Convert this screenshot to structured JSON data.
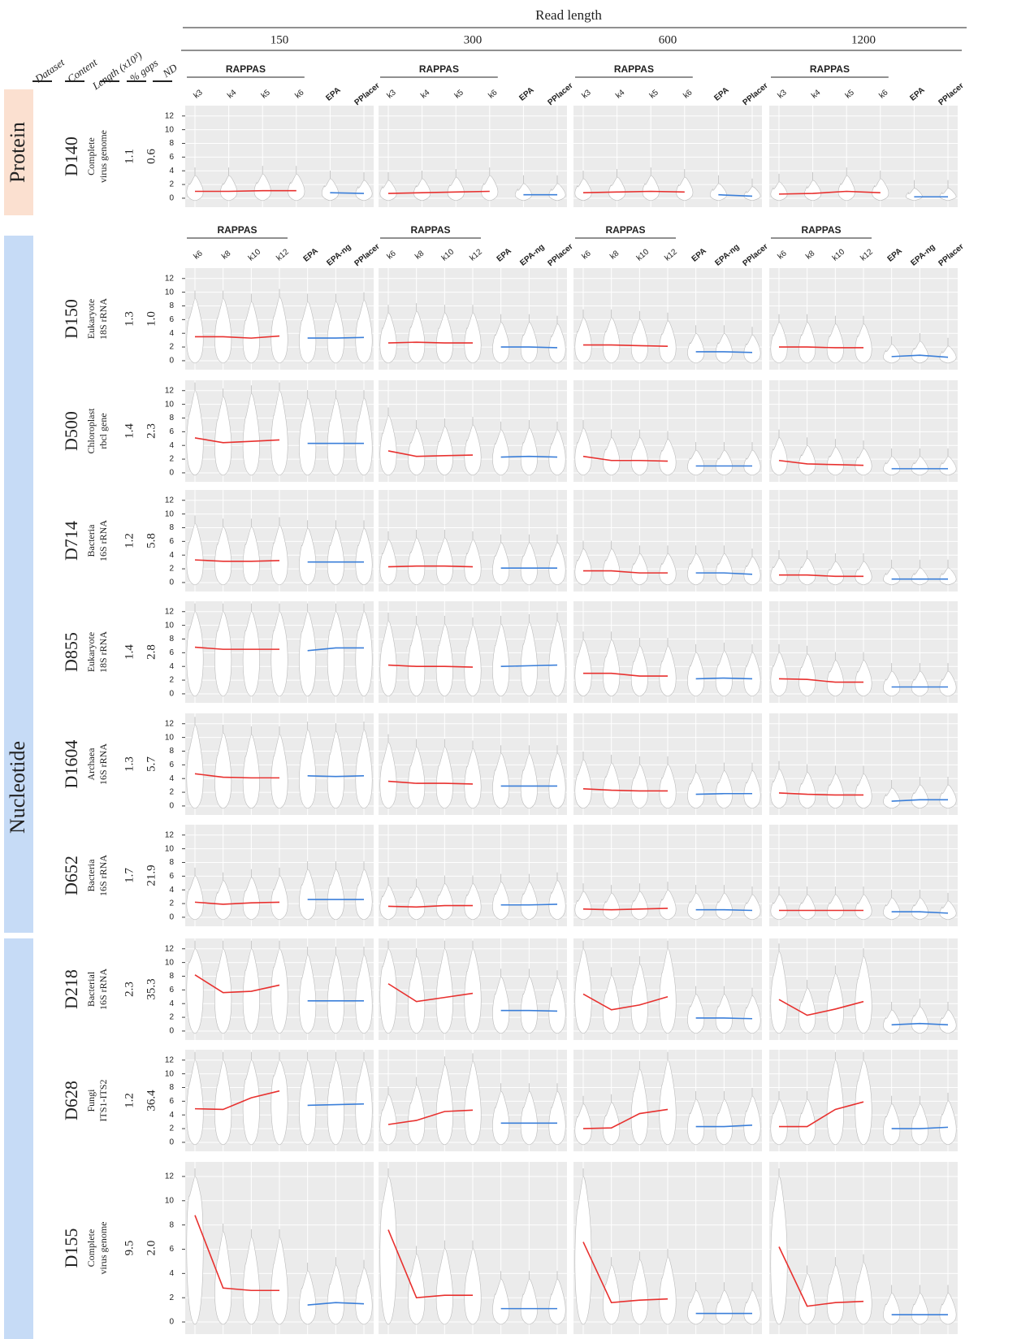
{
  "chart_data": {
    "type": "violin",
    "title": "Read length",
    "read_lengths": [
      "150",
      "300",
      "600",
      "1200"
    ],
    "row_headers": [
      "Dataset",
      "Content",
      "Length (x10³)",
      "% gaps",
      "ND"
    ],
    "ylim": [
      -0.6,
      12.8
    ],
    "yticks": [
      0,
      2,
      4,
      6,
      8,
      10,
      12
    ],
    "grid": true,
    "rappas_color": "#e8312f",
    "other_color": "#3b7fd9",
    "groups": [
      {
        "name": "Protein",
        "group_label": "RAPPAS",
        "rappas_methods": [
          "k3",
          "k4",
          "k5",
          "k6"
        ],
        "other_methods": [
          "EPA",
          "PPlacer"
        ],
        "rows": [
          {
            "dataset": "D140",
            "content": [
              "Complete",
              "virus genome"
            ],
            "length": "1.1",
            "gaps": "0.6",
            "rappas": [
              [
                1.0,
                1.0,
                1.1,
                1.1
              ],
              [
                0.7,
                0.8,
                0.9,
                1.0
              ],
              [
                0.8,
                0.9,
                1.0,
                0.9
              ],
              [
                0.6,
                0.7,
                1.0,
                0.8
              ]
            ],
            "other": [
              [
                0.8,
                0.7
              ],
              [
                0.5,
                0.5
              ],
              [
                0.5,
                0.3
              ],
              [
                0.2,
                0.2
              ]
            ]
          }
        ]
      },
      {
        "name": "Nucleotide",
        "group_label": "RAPPAS",
        "rappas_methods": [
          "k6",
          "k8",
          "k10",
          "k12"
        ],
        "other_methods": [
          "EPA",
          "EPA-ng",
          "PPlacer"
        ],
        "rows": [
          {
            "dataset": "D150",
            "content": [
              "Eukaryote",
              "18S rRNA"
            ],
            "length": "1.3",
            "gaps": "1.0",
            "rappas": [
              [
                3.5,
                3.5,
                3.3,
                3.6
              ],
              [
                2.6,
                2.7,
                2.6,
                2.6
              ],
              [
                2.3,
                2.3,
                2.2,
                2.1
              ],
              [
                2.0,
                2.0,
                1.9,
                1.9
              ]
            ],
            "other": [
              [
                3.3,
                3.3,
                3.4
              ],
              [
                2.0,
                2.0,
                1.9
              ],
              [
                1.3,
                1.3,
                1.2
              ],
              [
                0.6,
                0.8,
                0.5
              ]
            ]
          },
          {
            "dataset": "D500",
            "content": [
              "Chloroplast",
              "rbcl gene"
            ],
            "length": "1.4",
            "gaps": "2.3",
            "rappas": [
              [
                5.1,
                4.4,
                4.6,
                4.8
              ],
              [
                3.2,
                2.4,
                2.5,
                2.6
              ],
              [
                2.4,
                1.8,
                1.8,
                1.7
              ],
              [
                1.8,
                1.3,
                1.2,
                1.1
              ]
            ],
            "other": [
              [
                4.3,
                4.3,
                4.3
              ],
              [
                2.3,
                2.4,
                2.3
              ],
              [
                1.0,
                1.0,
                1.0
              ],
              [
                0.6,
                0.6,
                0.6
              ]
            ]
          },
          {
            "dataset": "D714",
            "content": [
              "Bacteria",
              "16S rRNA"
            ],
            "length": "1.2",
            "gaps": "5.8",
            "rappas": [
              [
                3.3,
                3.1,
                3.1,
                3.2
              ],
              [
                2.3,
                2.4,
                2.4,
                2.3
              ],
              [
                1.7,
                1.7,
                1.4,
                1.4
              ],
              [
                1.1,
                1.1,
                0.9,
                0.9
              ]
            ],
            "other": [
              [
                3.0,
                3.0,
                3.0
              ],
              [
                2.1,
                2.1,
                2.1
              ],
              [
                1.4,
                1.4,
                1.2
              ],
              [
                0.5,
                0.5,
                0.5
              ]
            ]
          },
          {
            "dataset": "D855",
            "content": [
              "Eukaryote",
              "18S rRNA"
            ],
            "length": "1.4",
            "gaps": "2.8",
            "rappas": [
              [
                6.8,
                6.5,
                6.5,
                6.5
              ],
              [
                4.2,
                4.0,
                4.0,
                3.9
              ],
              [
                3.0,
                3.0,
                2.6,
                2.6
              ],
              [
                2.2,
                2.1,
                1.7,
                1.7
              ]
            ],
            "other": [
              [
                6.3,
                6.7,
                6.7
              ],
              [
                4.0,
                4.1,
                4.2
              ],
              [
                2.2,
                2.3,
                2.2
              ],
              [
                1.0,
                1.0,
                1.0
              ]
            ]
          },
          {
            "dataset": "D1604",
            "content": [
              "Archaea",
              "16S rRNA"
            ],
            "length": "1.3",
            "gaps": "5.7",
            "rappas": [
              [
                4.7,
                4.2,
                4.1,
                4.1
              ],
              [
                3.6,
                3.3,
                3.3,
                3.2
              ],
              [
                2.5,
                2.3,
                2.2,
                2.2
              ],
              [
                1.9,
                1.7,
                1.6,
                1.6
              ]
            ],
            "other": [
              [
                4.4,
                4.3,
                4.4
              ],
              [
                2.9,
                2.9,
                2.9
              ],
              [
                1.7,
                1.8,
                1.8
              ],
              [
                0.7,
                0.9,
                0.9
              ]
            ]
          },
          {
            "dataset": "D652",
            "content": [
              "Bacteria",
              "16S rRNA"
            ],
            "length": "1.7",
            "gaps": "21.9",
            "rappas": [
              [
                2.2,
                1.9,
                2.1,
                2.2
              ],
              [
                1.6,
                1.5,
                1.7,
                1.7
              ],
              [
                1.2,
                1.1,
                1.2,
                1.3
              ],
              [
                1.0,
                1.0,
                1.0,
                1.0
              ]
            ],
            "other": [
              [
                2.6,
                2.6,
                2.6
              ],
              [
                1.8,
                1.8,
                1.9
              ],
              [
                1.1,
                1.1,
                1.0
              ],
              [
                0.8,
                0.8,
                0.6
              ]
            ]
          },
          {
            "dataset": "D218",
            "content": [
              "Bacterial",
              "16S rRNA"
            ],
            "length": "2.3",
            "gaps": "35.3",
            "rappas": [
              [
                8.2,
                5.6,
                5.8,
                6.7
              ],
              [
                6.9,
                4.3,
                4.9,
                5.5
              ],
              [
                5.4,
                3.1,
                3.8,
                5.0
              ],
              [
                4.6,
                2.3,
                3.2,
                4.3
              ]
            ],
            "other": [
              [
                4.4,
                4.4,
                4.4
              ],
              [
                3.0,
                3.0,
                2.9
              ],
              [
                1.9,
                1.9,
                1.8
              ],
              [
                0.9,
                1.1,
                0.9
              ]
            ]
          },
          {
            "dataset": "D628",
            "content": [
              "Fungi",
              "ITS1-ITS2"
            ],
            "length": "1.2",
            "gaps": "36.4",
            "rappas": [
              [
                4.9,
                4.8,
                6.5,
                7.5
              ],
              [
                2.6,
                3.2,
                4.5,
                4.7
              ],
              [
                2.0,
                2.1,
                4.2,
                4.8
              ],
              [
                2.3,
                2.3,
                4.8,
                5.9
              ]
            ],
            "other": [
              [
                5.4,
                5.5,
                5.6
              ],
              [
                2.8,
                2.8,
                2.8
              ],
              [
                2.3,
                2.3,
                2.5
              ],
              [
                2.0,
                2.0,
                2.2
              ]
            ]
          },
          {
            "dataset": "D155",
            "content": [
              "Complete",
              "virus genome"
            ],
            "length": "9.5",
            "gaps": "2.0",
            "rappas": [
              [
                8.8,
                2.8,
                2.6,
                2.6
              ],
              [
                7.6,
                2.0,
                2.2,
                2.2
              ],
              [
                6.6,
                1.6,
                1.8,
                1.9
              ],
              [
                6.2,
                1.3,
                1.6,
                1.7
              ]
            ],
            "other": [
              [
                1.4,
                1.6,
                1.5
              ],
              [
                1.1,
                1.1,
                1.1
              ],
              [
                0.7,
                0.7,
                0.7
              ],
              [
                0.6,
                0.6,
                0.6
              ]
            ]
          }
        ]
      }
    ]
  }
}
